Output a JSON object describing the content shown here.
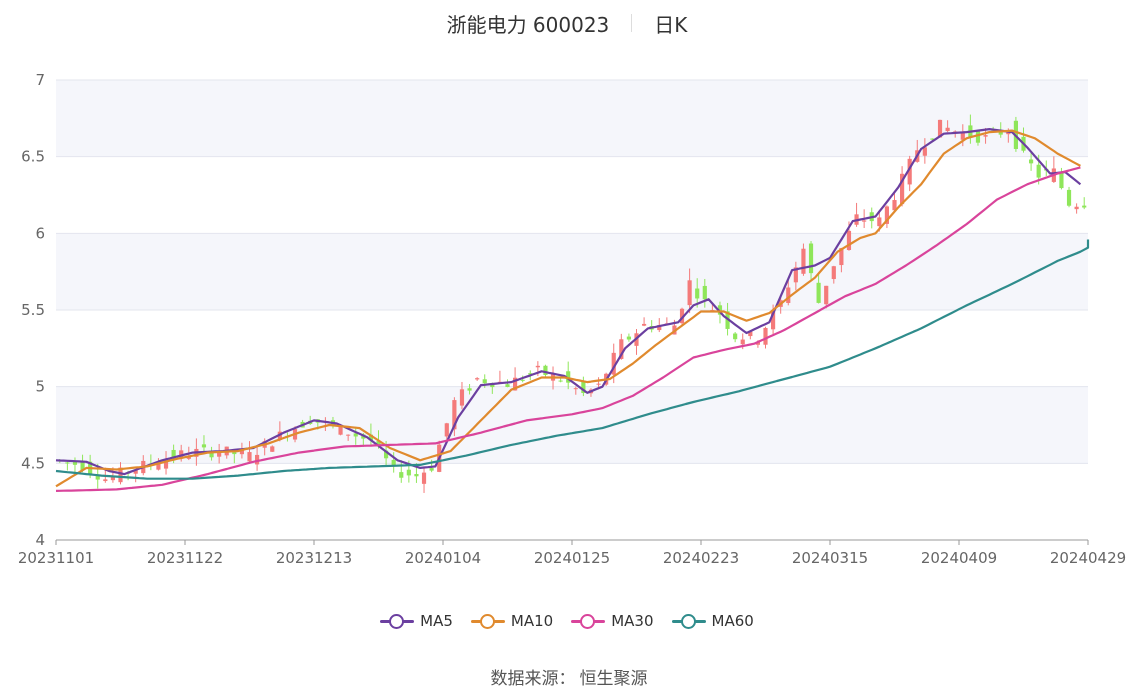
{
  "header": {
    "title": "浙能电力 600023",
    "period": "日K"
  },
  "source": {
    "label": "数据来源：",
    "value": "恒生聚源"
  },
  "colors": {
    "up": "#f47a7a",
    "down": "#8fe65a",
    "band": "#f5f6fb",
    "grid": "#e3e5ee",
    "axis": "#999999"
  },
  "chart_data": {
    "type": "candlestick",
    "y_ticks": [
      "4",
      "4.5",
      "5",
      "5.5",
      "6",
      "6.5",
      "7"
    ],
    "ylim": [
      4,
      7
    ],
    "x_ticks": [
      "20231101",
      "20231122",
      "20231213",
      "20240104",
      "20240125",
      "20240223",
      "20240315",
      "20240409",
      "20240429"
    ],
    "legend": [
      {
        "name": "MA5",
        "color": "#6b3fa0"
      },
      {
        "name": "MA10",
        "color": "#e08a2e"
      },
      {
        "name": "MA30",
        "color": "#d9449b"
      },
      {
        "name": "MA60",
        "color": "#2f8c8c"
      }
    ],
    "close_anchors": [
      [
        0,
        4.52
      ],
      [
        4,
        4.49
      ],
      [
        7,
        4.4
      ],
      [
        10,
        4.45
      ],
      [
        14,
        4.52
      ],
      [
        18,
        4.57
      ],
      [
        22,
        4.58
      ],
      [
        26,
        4.55
      ],
      [
        30,
        4.68
      ],
      [
        34,
        4.79
      ],
      [
        38,
        4.72
      ],
      [
        42,
        4.65
      ],
      [
        45,
        4.45
      ],
      [
        48,
        4.42
      ],
      [
        50,
        4.48
      ],
      [
        53,
        4.9
      ],
      [
        56,
        5.05
      ],
      [
        60,
        5.02
      ],
      [
        64,
        5.1
      ],
      [
        67,
        5.05
      ],
      [
        70,
        4.95
      ],
      [
        72,
        5.0
      ],
      [
        75,
        5.28
      ],
      [
        78,
        5.4
      ],
      [
        82,
        5.4
      ],
      [
        84,
        5.68
      ],
      [
        86,
        5.55
      ],
      [
        88,
        5.48
      ],
      [
        90,
        5.33
      ],
      [
        93,
        5.32
      ],
      [
        96,
        5.55
      ],
      [
        99,
        5.9
      ],
      [
        101,
        5.55
      ],
      [
        103,
        5.8
      ],
      [
        106,
        6.1
      ],
      [
        109,
        6.08
      ],
      [
        111,
        6.25
      ],
      [
        114,
        6.55
      ],
      [
        117,
        6.7
      ],
      [
        120,
        6.65
      ],
      [
        123,
        6.62
      ],
      [
        126,
        6.68
      ],
      [
        128,
        6.5
      ],
      [
        130,
        6.38
      ],
      [
        132,
        6.4
      ],
      [
        134,
        6.2
      ]
    ],
    "ma_anchors": {
      "MA5": [
        [
          0,
          4.52
        ],
        [
          4,
          4.51
        ],
        [
          7,
          4.45
        ],
        [
          9,
          4.43
        ],
        [
          14,
          4.52
        ],
        [
          18,
          4.57
        ],
        [
          22,
          4.58
        ],
        [
          26,
          4.6
        ],
        [
          30,
          4.7
        ],
        [
          34,
          4.78
        ],
        [
          37,
          4.76
        ],
        [
          41,
          4.67
        ],
        [
          45,
          4.52
        ],
        [
          48,
          4.47
        ],
        [
          50,
          4.48
        ],
        [
          53,
          4.8
        ],
        [
          56,
          5.01
        ],
        [
          60,
          5.03
        ],
        [
          64,
          5.1
        ],
        [
          67,
          5.07
        ],
        [
          70,
          4.96
        ],
        [
          72,
          5.0
        ],
        [
          75,
          5.25
        ],
        [
          78,
          5.38
        ],
        [
          82,
          5.42
        ],
        [
          84,
          5.53
        ],
        [
          86,
          5.57
        ],
        [
          88,
          5.46
        ],
        [
          91,
          5.35
        ],
        [
          94,
          5.42
        ],
        [
          97,
          5.76
        ],
        [
          100,
          5.79
        ],
        [
          102,
          5.84
        ],
        [
          105,
          6.08
        ],
        [
          108,
          6.11
        ],
        [
          111,
          6.3
        ],
        [
          114,
          6.55
        ],
        [
          117,
          6.65
        ],
        [
          120,
          6.66
        ],
        [
          123,
          6.68
        ],
        [
          126,
          6.66
        ],
        [
          128,
          6.56
        ],
        [
          131,
          6.39
        ],
        [
          133,
          6.4
        ],
        [
          135,
          6.32
        ]
      ],
      "MA10": [
        [
          0,
          4.35
        ],
        [
          4,
          4.47
        ],
        [
          8,
          4.46
        ],
        [
          12,
          4.48
        ],
        [
          16,
          4.53
        ],
        [
          20,
          4.57
        ],
        [
          24,
          4.58
        ],
        [
          28,
          4.63
        ],
        [
          32,
          4.7
        ],
        [
          36,
          4.75
        ],
        [
          40,
          4.73
        ],
        [
          44,
          4.6
        ],
        [
          48,
          4.52
        ],
        [
          52,
          4.58
        ],
        [
          56,
          4.78
        ],
        [
          60,
          4.98
        ],
        [
          64,
          5.06
        ],
        [
          67,
          5.06
        ],
        [
          70,
          5.03
        ],
        [
          73,
          5.05
        ],
        [
          76,
          5.15
        ],
        [
          79,
          5.27
        ],
        [
          82,
          5.38
        ],
        [
          85,
          5.49
        ],
        [
          88,
          5.49
        ],
        [
          91,
          5.43
        ],
        [
          94,
          5.48
        ],
        [
          97,
          5.6
        ],
        [
          100,
          5.71
        ],
        [
          103,
          5.88
        ],
        [
          106,
          5.97
        ],
        [
          108,
          6.0
        ],
        [
          111,
          6.17
        ],
        [
          114,
          6.32
        ],
        [
          117,
          6.52
        ],
        [
          120,
          6.62
        ],
        [
          123,
          6.66
        ],
        [
          126,
          6.67
        ],
        [
          129,
          6.62
        ],
        [
          132,
          6.52
        ],
        [
          135,
          6.44
        ]
      ],
      "MA30": [
        [
          0,
          4.32
        ],
        [
          8,
          4.33
        ],
        [
          14,
          4.36
        ],
        [
          20,
          4.43
        ],
        [
          26,
          4.51
        ],
        [
          32,
          4.57
        ],
        [
          38,
          4.61
        ],
        [
          44,
          4.62
        ],
        [
          50,
          4.63
        ],
        [
          56,
          4.7
        ],
        [
          62,
          4.78
        ],
        [
          68,
          4.82
        ],
        [
          72,
          4.86
        ],
        [
          76,
          4.94
        ],
        [
          80,
          5.06
        ],
        [
          84,
          5.19
        ],
        [
          88,
          5.24
        ],
        [
          92,
          5.28
        ],
        [
          96,
          5.37
        ],
        [
          100,
          5.48
        ],
        [
          104,
          5.59
        ],
        [
          108,
          5.67
        ],
        [
          112,
          5.79
        ],
        [
          116,
          5.92
        ],
        [
          120,
          6.06
        ],
        [
          124,
          6.22
        ],
        [
          128,
          6.32
        ],
        [
          132,
          6.39
        ],
        [
          135,
          6.43
        ]
      ],
      "MA60": [
        [
          0,
          4.45
        ],
        [
          6,
          4.42
        ],
        [
          12,
          4.4
        ],
        [
          18,
          4.4
        ],
        [
          24,
          4.42
        ],
        [
          30,
          4.45
        ],
        [
          36,
          4.47
        ],
        [
          42,
          4.48
        ],
        [
          48,
          4.49
        ],
        [
          54,
          4.55
        ],
        [
          60,
          4.62
        ],
        [
          66,
          4.68
        ],
        [
          72,
          4.73
        ],
        [
          78,
          4.82
        ],
        [
          84,
          4.9
        ],
        [
          90,
          4.97
        ],
        [
          96,
          5.05
        ],
        [
          102,
          5.13
        ],
        [
          108,
          5.25
        ],
        [
          114,
          5.38
        ],
        [
          120,
          5.53
        ],
        [
          126,
          5.67
        ],
        [
          132,
          5.82
        ],
        [
          135,
          5.88
        ],
        [
          138,
          5.96
        ]
      ]
    },
    "n_candles": 136,
    "x_tick_index": [
      0,
      17,
      34,
      51,
      68,
      85,
      102,
      119,
      136
    ]
  }
}
